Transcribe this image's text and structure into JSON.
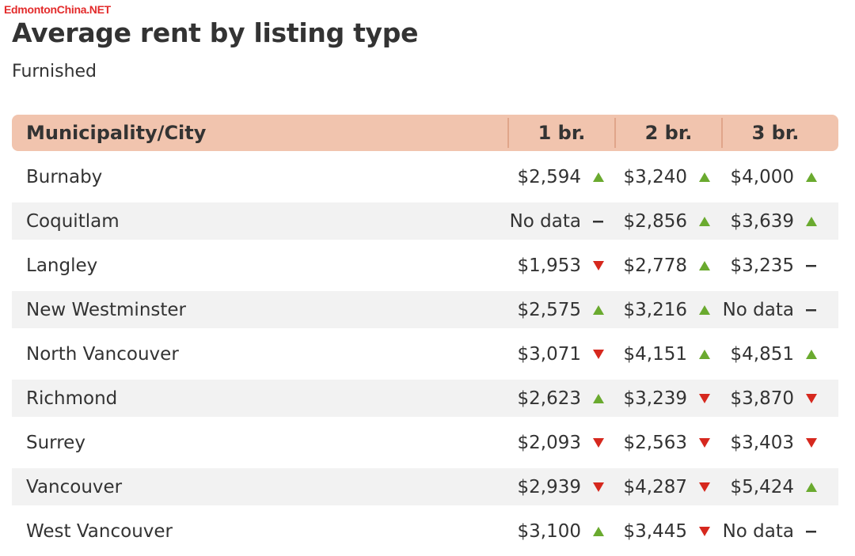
{
  "watermark": "EdmontonChina.NET",
  "title": "Average rent by listing type",
  "subtitle": "Furnished",
  "colors": {
    "header_bg": "#f1c4ae",
    "up": "#6aaa2f",
    "down": "#d6281e",
    "flat": "#333333",
    "stripe": "#f2f2f2"
  },
  "chart_data": {
    "type": "table",
    "columns": [
      "Municipality/City",
      "1 br.",
      "2 br.",
      "3 br."
    ],
    "rows": [
      {
        "city": "Burnaby",
        "cells": [
          {
            "value": "$2,594",
            "trend": "up"
          },
          {
            "value": "$3,240",
            "trend": "up"
          },
          {
            "value": "$4,000",
            "trend": "up"
          }
        ]
      },
      {
        "city": "Coquitlam",
        "cells": [
          {
            "value": "No data",
            "trend": "flat"
          },
          {
            "value": "$2,856",
            "trend": "up"
          },
          {
            "value": "$3,639",
            "trend": "up"
          }
        ]
      },
      {
        "city": "Langley",
        "cells": [
          {
            "value": "$1,953",
            "trend": "down"
          },
          {
            "value": "$2,778",
            "trend": "up"
          },
          {
            "value": "$3,235",
            "trend": "flat"
          }
        ]
      },
      {
        "city": "New Westminster",
        "cells": [
          {
            "value": "$2,575",
            "trend": "up"
          },
          {
            "value": "$3,216",
            "trend": "up"
          },
          {
            "value": "No data",
            "trend": "flat"
          }
        ]
      },
      {
        "city": "North Vancouver",
        "cells": [
          {
            "value": "$3,071",
            "trend": "down"
          },
          {
            "value": "$4,151",
            "trend": "up"
          },
          {
            "value": "$4,851",
            "trend": "up"
          }
        ]
      },
      {
        "city": "Richmond",
        "cells": [
          {
            "value": "$2,623",
            "trend": "up"
          },
          {
            "value": "$3,239",
            "trend": "down"
          },
          {
            "value": "$3,870",
            "trend": "down"
          }
        ]
      },
      {
        "city": "Surrey",
        "cells": [
          {
            "value": "$2,093",
            "trend": "down"
          },
          {
            "value": "$2,563",
            "trend": "down"
          },
          {
            "value": "$3,403",
            "trend": "down"
          }
        ]
      },
      {
        "city": "Vancouver",
        "cells": [
          {
            "value": "$2,939",
            "trend": "down"
          },
          {
            "value": "$4,287",
            "trend": "down"
          },
          {
            "value": "$5,424",
            "trend": "up"
          }
        ]
      },
      {
        "city": "West Vancouver",
        "cells": [
          {
            "value": "$3,100",
            "trend": "up"
          },
          {
            "value": "$3,445",
            "trend": "down"
          },
          {
            "value": "No data",
            "trend": "flat"
          }
        ]
      }
    ]
  }
}
